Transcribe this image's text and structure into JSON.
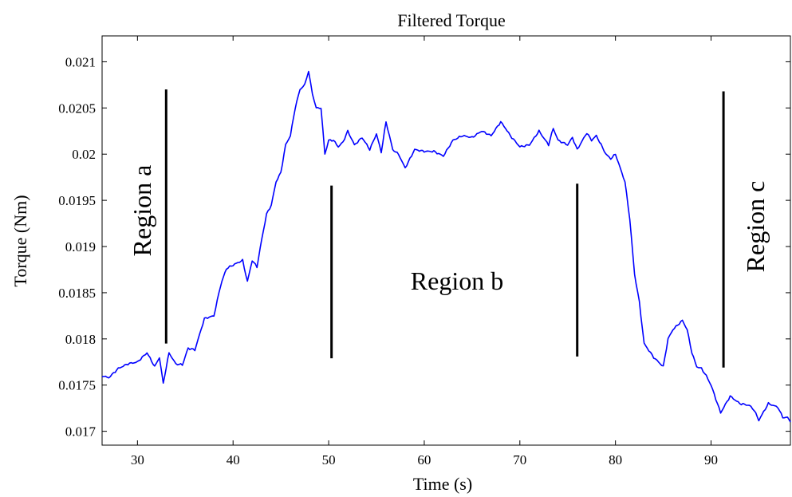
{
  "chart_data": {
    "type": "line",
    "title": "Filtered Torque",
    "xlabel": "Time (s)",
    "ylabel": "Torque (Nm)",
    "xlim": [
      26.3,
      98.3
    ],
    "ylim": [
      0.01685,
      0.02128
    ],
    "xticks": [
      30,
      40,
      50,
      60,
      70,
      80,
      90
    ],
    "yticks": [
      0.017,
      0.0175,
      0.018,
      0.0185,
      0.019,
      0.0195,
      0.02,
      0.0205,
      0.021
    ],
    "xtick_labels": [
      "30",
      "40",
      "50",
      "60",
      "70",
      "80",
      "90"
    ],
    "ytick_labels": [
      "0.017",
      "0.0175",
      "0.018",
      "0.0185",
      "0.019",
      "0.0195",
      "0.02",
      "0.0205",
      "0.021"
    ],
    "grid": false,
    "line_color": "#0000ff",
    "series": [
      {
        "x": [
          26.3,
          27,
          28,
          29,
          30,
          31,
          31.8,
          32.3,
          32.7,
          33.3,
          34,
          34.7,
          35.3,
          36,
          36.5,
          37,
          38,
          38.7,
          39.3,
          40,
          41,
          41.5,
          42,
          42.5,
          43,
          43.5,
          44,
          44.5,
          45,
          45.5,
          46,
          46.5,
          47,
          47.5,
          47.9,
          48.3,
          48.7,
          49.2,
          49.6,
          50,
          50.5,
          51,
          51.5,
          52,
          52.7,
          53.5,
          54.3,
          55,
          55.5,
          56,
          56.7,
          57.3,
          58,
          59,
          60,
          61,
          62,
          63,
          64,
          65,
          66,
          67,
          68,
          68.5,
          69,
          70,
          71,
          72,
          73,
          73.5,
          74,
          75,
          75.5,
          76,
          77,
          77.5,
          78,
          79,
          79.5,
          80,
          80.5,
          81,
          81.5,
          82,
          82.5,
          83,
          84,
          84.5,
          85,
          85.5,
          86,
          86.5,
          87,
          87.5,
          88,
          88.5,
          89,
          89.5,
          90,
          91,
          92,
          93,
          94,
          94.5,
          95,
          96,
          97,
          97.5,
          98,
          98.3
        ],
        "y": [
          0.0176,
          0.01758,
          0.01768,
          0.01773,
          0.01775,
          0.01785,
          0.0177,
          0.0178,
          0.01752,
          0.01785,
          0.01773,
          0.01772,
          0.0179,
          0.01788,
          0.01805,
          0.01822,
          0.01825,
          0.01858,
          0.01876,
          0.0188,
          0.01885,
          0.01862,
          0.01885,
          0.01878,
          0.01908,
          0.01935,
          0.01945,
          0.0197,
          0.0198,
          0.0201,
          0.0202,
          0.0205,
          0.0207,
          0.02075,
          0.0209,
          0.02065,
          0.0205,
          0.0205,
          0.02,
          0.02015,
          0.02015,
          0.02008,
          0.02013,
          0.02025,
          0.0201,
          0.02018,
          0.02005,
          0.02022,
          0.02002,
          0.02035,
          0.02005,
          0.02,
          0.01985,
          0.02005,
          0.02003,
          0.02003,
          0.01998,
          0.02015,
          0.0202,
          0.02018,
          0.02025,
          0.0202,
          0.02035,
          0.02028,
          0.0202,
          0.02008,
          0.0201,
          0.02025,
          0.0201,
          0.02028,
          0.02015,
          0.0201,
          0.02018,
          0.02005,
          0.02023,
          0.02015,
          0.0202,
          0.02,
          0.01995,
          0.02,
          0.01985,
          0.0197,
          0.0193,
          0.0187,
          0.0184,
          0.01795,
          0.0178,
          0.01775,
          0.0177,
          0.018,
          0.0181,
          0.01815,
          0.0182,
          0.0181,
          0.01785,
          0.0177,
          0.01768,
          0.0176,
          0.0175,
          0.0172,
          0.01738,
          0.0173,
          0.01728,
          0.01723,
          0.01712,
          0.0173,
          0.01726,
          0.01715,
          0.01715,
          0.0171
        ]
      }
    ],
    "annotations": {
      "region_a": "Region a",
      "region_b": "Region b",
      "region_c": "Region c"
    },
    "region_boundaries": [
      {
        "x": 33.0,
        "y_range": [
          0.01795,
          0.0207
        ]
      },
      {
        "x": 50.3,
        "y_range": [
          0.01779,
          0.01966
        ]
      },
      {
        "x": 76.0,
        "y_range": [
          0.01781,
          0.01968
        ]
      },
      {
        "x": 91.3,
        "y_range": [
          0.01769,
          0.02068
        ]
      }
    ]
  }
}
